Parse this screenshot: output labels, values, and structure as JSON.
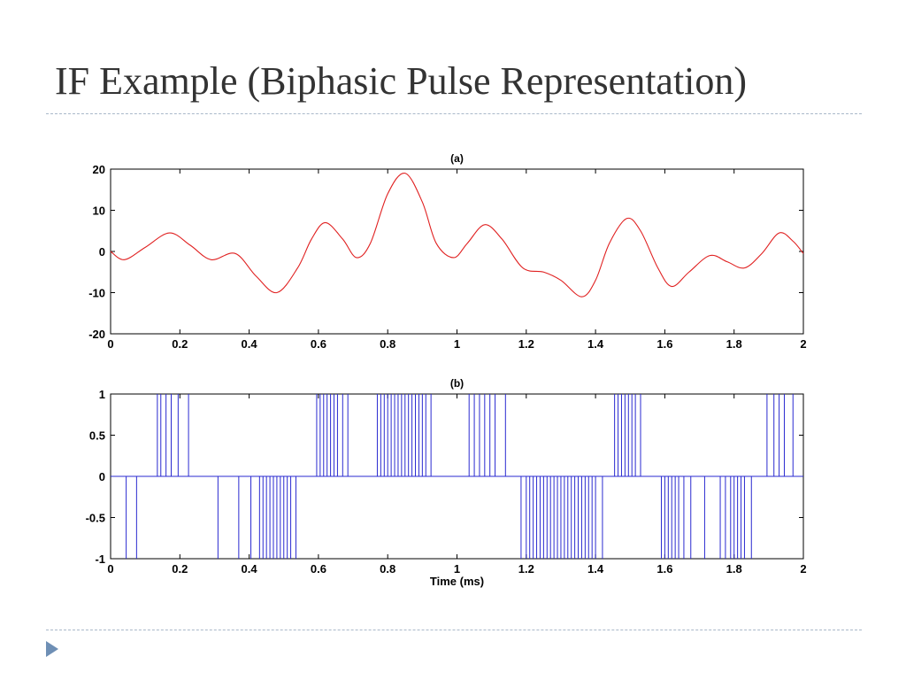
{
  "slide": {
    "title": "IF Example (Biphasic Pulse Representation)"
  },
  "colors": {
    "title_text": "#333333",
    "rule": "#a9b8c9",
    "nav_arrow": "#6e8fb5",
    "signal_line": "#e02020",
    "pulse_line": "#2a2ad0",
    "axes": "#000000"
  },
  "chart_data": [
    {
      "type": "line",
      "title": "(a)",
      "xlabel": "",
      "ylabel": "",
      "xlim": [
        0,
        2
      ],
      "ylim": [
        -20,
        20
      ],
      "xticks": [
        "0",
        "0.2",
        "0.4",
        "0.6",
        "0.8",
        "1",
        "1.2",
        "1.4",
        "1.6",
        "1.8",
        "2"
      ],
      "yticks": [
        "-20",
        "-10",
        "0",
        "10",
        "20"
      ],
      "grid": false,
      "series": [
        {
          "color": "#e02020",
          "points": [
            [
              0.0,
              0.0
            ],
            [
              0.04,
              -2.0
            ],
            [
              0.1,
              1.0
            ],
            [
              0.17,
              4.5
            ],
            [
              0.23,
              1.5
            ],
            [
              0.29,
              -2.0
            ],
            [
              0.36,
              -0.5
            ],
            [
              0.42,
              -6.0
            ],
            [
              0.48,
              -10.0
            ],
            [
              0.54,
              -4.0
            ],
            [
              0.58,
              3.0
            ],
            [
              0.62,
              7.0
            ],
            [
              0.67,
              3.0
            ],
            [
              0.71,
              -1.5
            ],
            [
              0.75,
              2.0
            ],
            [
              0.8,
              14.0
            ],
            [
              0.85,
              19.0
            ],
            [
              0.9,
              12.0
            ],
            [
              0.94,
              2.0
            ],
            [
              0.99,
              -1.5
            ],
            [
              1.03,
              2.0
            ],
            [
              1.08,
              6.5
            ],
            [
              1.13,
              3.0
            ],
            [
              1.19,
              -4.0
            ],
            [
              1.25,
              -5.0
            ],
            [
              1.3,
              -7.0
            ],
            [
              1.36,
              -11.0
            ],
            [
              1.4,
              -7.0
            ],
            [
              1.44,
              2.0
            ],
            [
              1.49,
              8.0
            ],
            [
              1.53,
              5.0
            ],
            [
              1.58,
              -4.0
            ],
            [
              1.62,
              -8.5
            ],
            [
              1.67,
              -5.0
            ],
            [
              1.73,
              -1.0
            ],
            [
              1.78,
              -2.5
            ],
            [
              1.83,
              -4.0
            ],
            [
              1.88,
              -0.5
            ],
            [
              1.93,
              4.5
            ],
            [
              1.97,
              2.5
            ],
            [
              2.0,
              -0.5
            ]
          ]
        }
      ]
    },
    {
      "type": "line",
      "title": "(b)",
      "xlabel": "Time (ms)",
      "ylabel": "",
      "xlim": [
        0,
        2
      ],
      "ylim": [
        -1,
        1
      ],
      "xticks": [
        "0",
        "0.2",
        "0.4",
        "0.6",
        "0.8",
        "1",
        "1.2",
        "1.4",
        "1.6",
        "1.8",
        "2"
      ],
      "yticks": [
        "-1",
        "-0.5",
        "0",
        "0.5",
        "1"
      ],
      "grid": false,
      "series": [
        {
          "color": "#2a2ad0",
          "baseline": 0,
          "positive_pulses": [
            0.135,
            0.145,
            0.16,
            0.175,
            0.195,
            0.225,
            0.595,
            0.605,
            0.615,
            0.625,
            0.635,
            0.645,
            0.655,
            0.67,
            0.685,
            0.77,
            0.78,
            0.79,
            0.8,
            0.81,
            0.82,
            0.83,
            0.84,
            0.85,
            0.86,
            0.87,
            0.88,
            0.89,
            0.9,
            0.91,
            0.925,
            1.035,
            1.05,
            1.065,
            1.08,
            1.095,
            1.11,
            1.14,
            1.455,
            1.465,
            1.475,
            1.485,
            1.495,
            1.505,
            1.515,
            1.53,
            1.895,
            1.915,
            1.93,
            1.945,
            1.97
          ],
          "negative_pulses": [
            0.045,
            0.075,
            0.31,
            0.37,
            0.405,
            0.43,
            0.44,
            0.45,
            0.46,
            0.47,
            0.48,
            0.49,
            0.5,
            0.51,
            0.52,
            0.535,
            1.185,
            1.2,
            1.21,
            1.22,
            1.23,
            1.24,
            1.25,
            1.26,
            1.27,
            1.28,
            1.29,
            1.3,
            1.31,
            1.32,
            1.33,
            1.34,
            1.35,
            1.36,
            1.37,
            1.38,
            1.39,
            1.4,
            1.42,
            1.59,
            1.6,
            1.61,
            1.62,
            1.63,
            1.64,
            1.655,
            1.675,
            1.715,
            1.76,
            1.775,
            1.79,
            1.8,
            1.81,
            1.82,
            1.83,
            1.85
          ]
        }
      ]
    }
  ]
}
